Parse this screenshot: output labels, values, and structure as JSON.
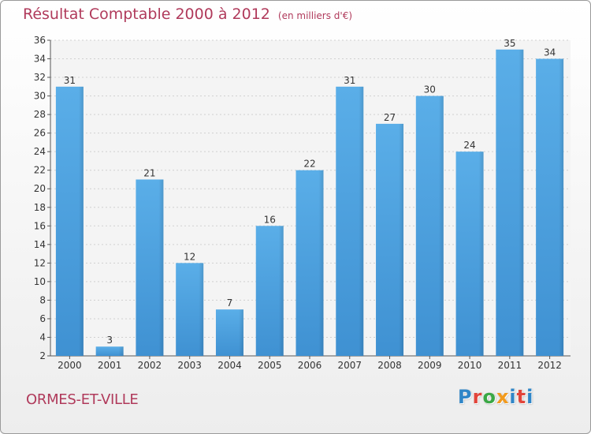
{
  "header": {
    "title": "Résultat Comptable 2000 à 2012",
    "subtitle": "(en milliers d'€)"
  },
  "footer": {
    "commune": "ORMES-ET-VILLE",
    "brand_letters": [
      "P",
      "r",
      "o",
      "x",
      "i",
      "t",
      "i"
    ]
  },
  "colors": {
    "bar": "#3f91d2",
    "bar_light": "#5aaee8",
    "title": "#b03a5b",
    "brand": [
      "#2f86c8",
      "#e2443a",
      "#3aa845",
      "#f29a1d",
      "#2f86c8",
      "#e2443a",
      "#2f86c8"
    ]
  },
  "chart_data": {
    "type": "bar",
    "title": "Résultat Comptable 2000 à 2012",
    "xlabel": "",
    "ylabel": "",
    "categories": [
      "2000",
      "2001",
      "2002",
      "2003",
      "2004",
      "2005",
      "2006",
      "2007",
      "2008",
      "2009",
      "2010",
      "2011",
      "2012"
    ],
    "values": [
      31,
      3,
      21,
      12,
      7,
      16,
      22,
      31,
      27,
      30,
      24,
      35,
      34
    ],
    "ylim": [
      2,
      36
    ],
    "yticks": [
      2,
      4,
      6,
      8,
      10,
      12,
      14,
      16,
      18,
      20,
      22,
      24,
      26,
      28,
      30,
      32,
      34,
      36
    ],
    "grid": true
  }
}
